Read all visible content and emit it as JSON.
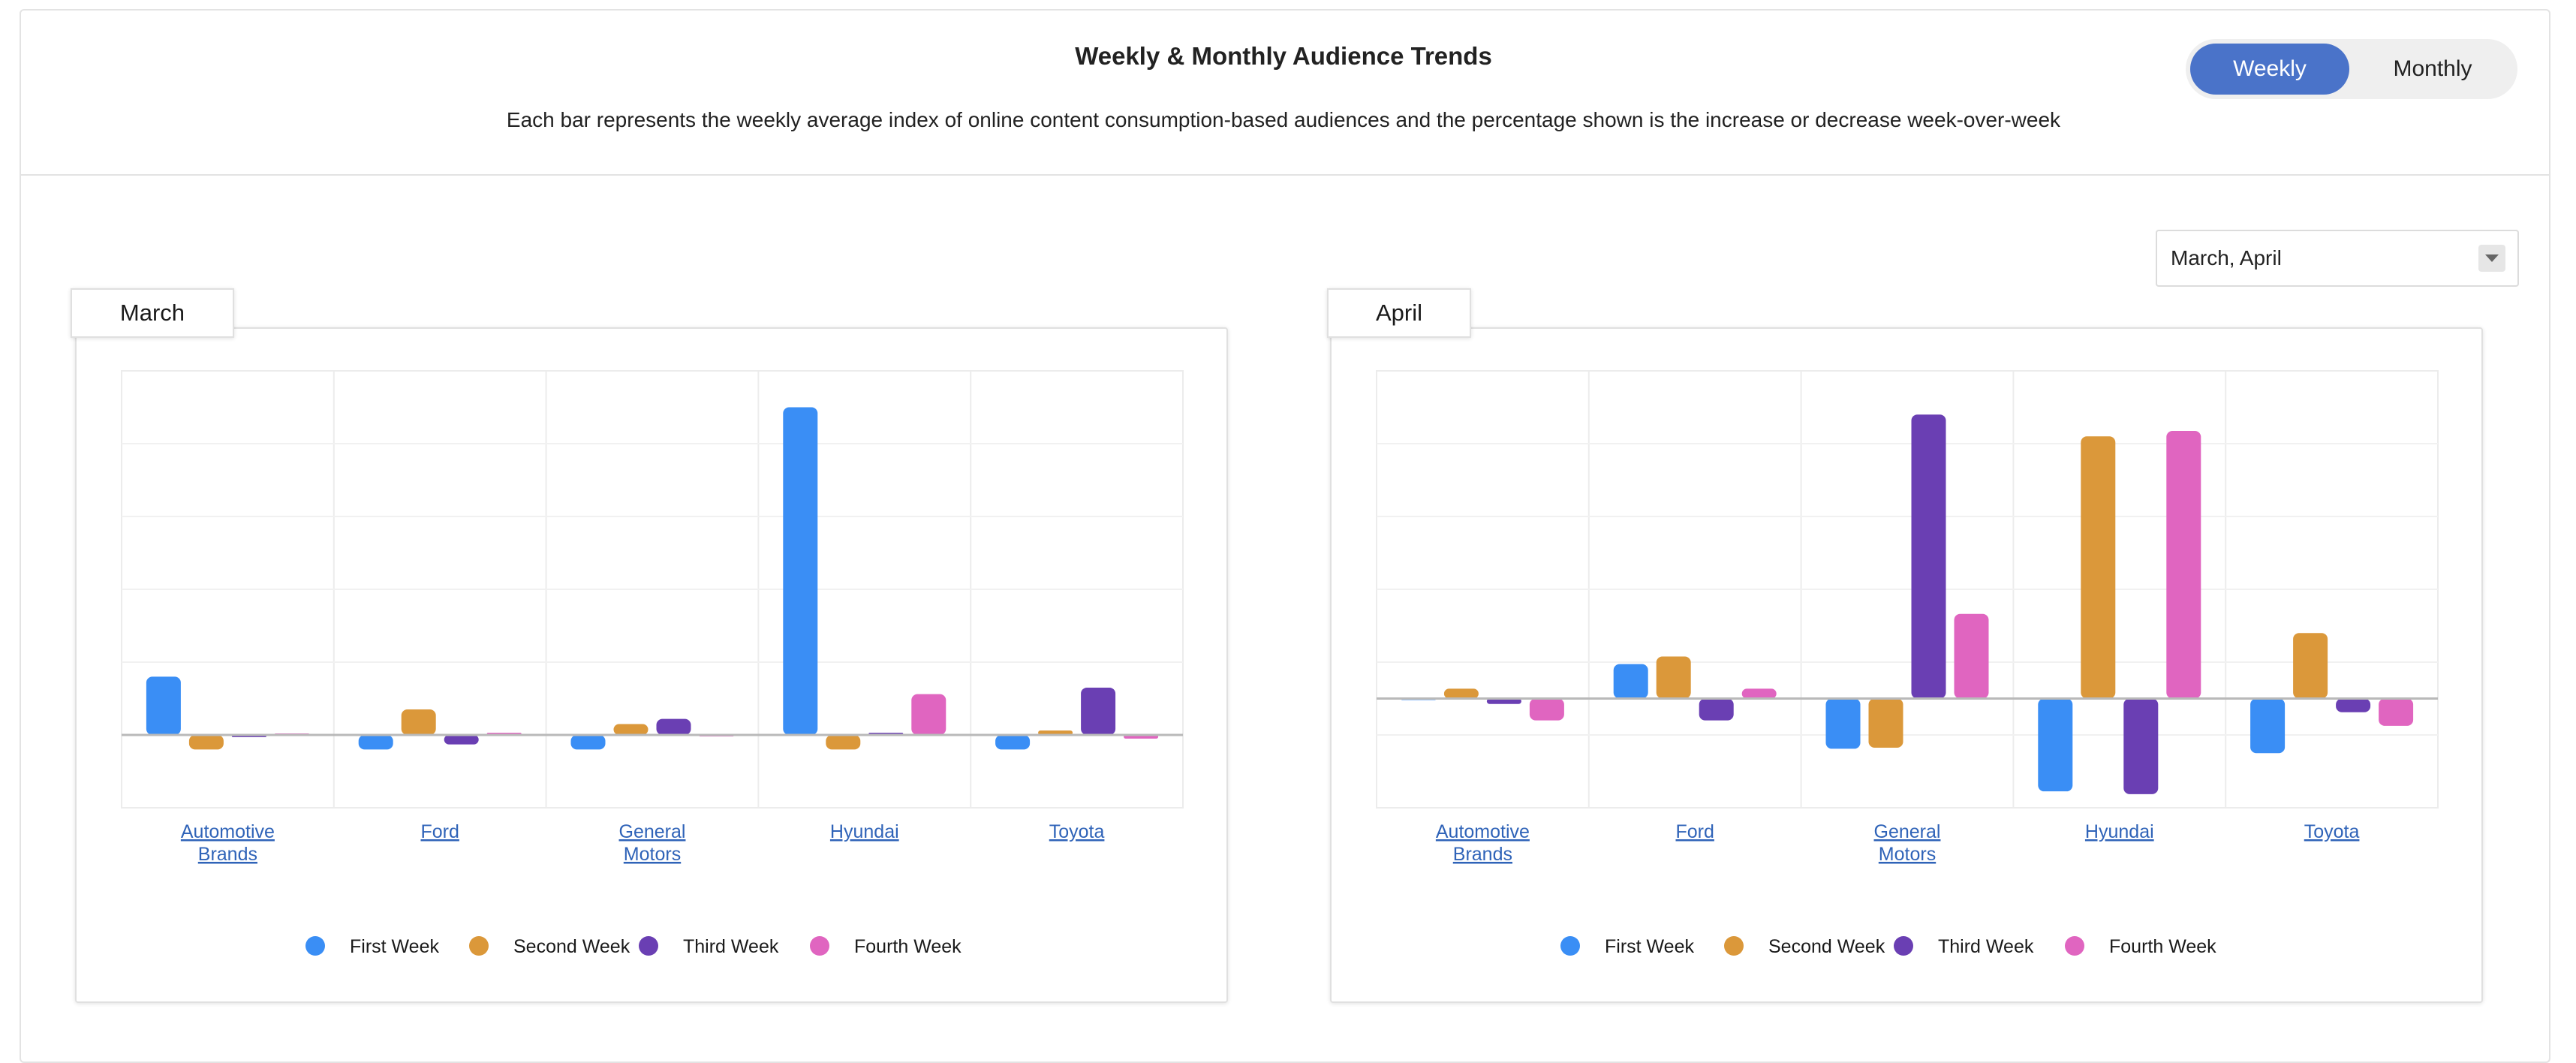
{
  "header": {
    "title": "Weekly & Monthly Audience Trends",
    "subtitle": "Each bar represents the weekly average index of online content consumption-based audiences and the percentage shown is the increase or decrease week-over-week"
  },
  "toggle": {
    "weekly_label": "Weekly",
    "monthly_label": "Monthly",
    "active": "Weekly"
  },
  "month_select": {
    "value": "March, April"
  },
  "colors": {
    "accent": "#4a73c9",
    "first": "#3a8ef5",
    "second": "#db983a",
    "third": "#6a3fb3",
    "fourth": "#e065c0"
  },
  "chart_data": [
    {
      "type": "bar",
      "title": "March",
      "categories": [
        "Automotive Brands",
        "Ford",
        "General Motors",
        "Hyundai",
        "Toyota"
      ],
      "series": [
        {
          "name": "First Week",
          "values": [
            8,
            -2,
            -2,
            45,
            -2
          ]
        },
        {
          "name": "Second Week",
          "values": [
            -2,
            3.5,
            1.5,
            -2,
            0.6
          ]
        },
        {
          "name": "Third Week",
          "values": [
            -0.3,
            -1.3,
            2.2,
            0.3,
            6.5
          ]
        },
        {
          "name": "Fourth Week",
          "values": [
            0.2,
            0.3,
            -0.1,
            5.6,
            -0.5
          ]
        }
      ],
      "ylim": [
        -10,
        50
      ],
      "legend": "bottom"
    },
    {
      "type": "bar",
      "title": "April",
      "categories": [
        "Automotive Brands",
        "Ford",
        "General Motors",
        "Hyundai",
        "Toyota"
      ],
      "series": [
        {
          "name": "First Week",
          "values": [
            -0.2,
            6.3,
            -9.2,
            -17,
            -10
          ]
        },
        {
          "name": "Second Week",
          "values": [
            1.8,
            7.7,
            -9,
            48,
            12
          ]
        },
        {
          "name": "Third Week",
          "values": [
            -1,
            -4,
            52,
            -17.5,
            -2.5
          ]
        },
        {
          "name": "Fourth Week",
          "values": [
            -4,
            1.8,
            15.5,
            49,
            -5
          ]
        }
      ],
      "ylim": [
        -20,
        60
      ],
      "legend": "bottom"
    }
  ]
}
